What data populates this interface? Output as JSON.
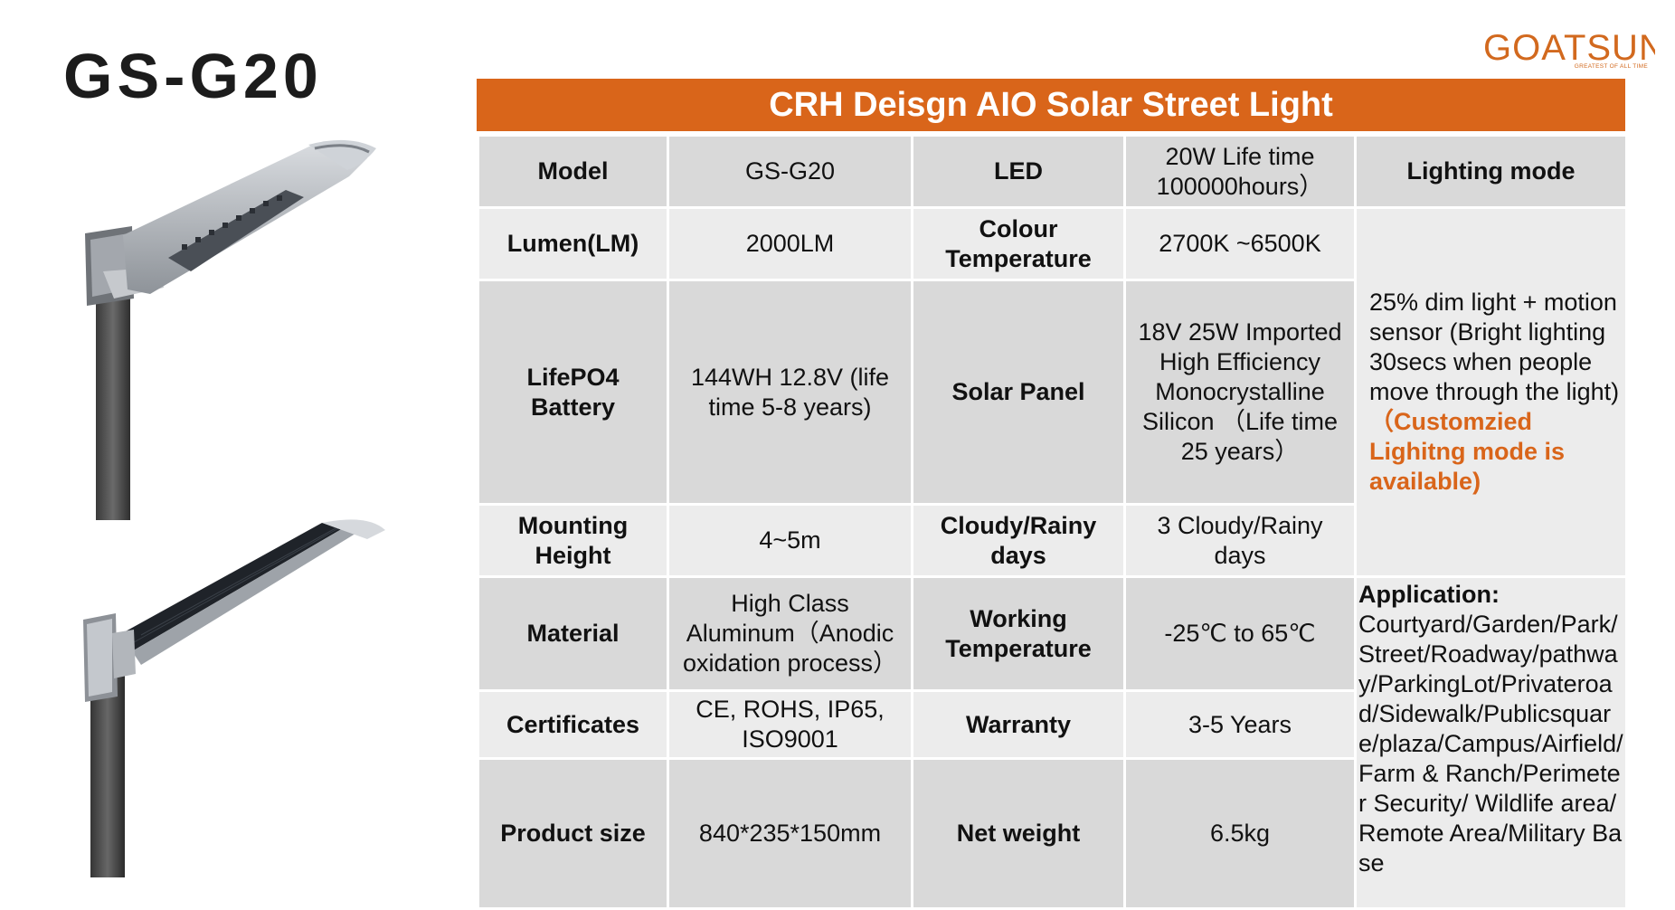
{
  "product": {
    "model_title": "GS-G20"
  },
  "logo": {
    "brand": "GOATSUN",
    "tagline": "GREATEST OF ALL TIME"
  },
  "banner": {
    "title": "CRH Deisgn AIO Solar Street Light"
  },
  "specs": {
    "model": {
      "label": "Model",
      "value": "GS-G20"
    },
    "led": {
      "label": "LED",
      "value": "20W Life time 100000hours）"
    },
    "lumen": {
      "label": "Lumen(LM)",
      "value": "2000LM"
    },
    "colour_temp": {
      "label": "Colour Temperature",
      "value": "2700K ~6500K"
    },
    "battery": {
      "label": "LifePO4 Battery",
      "value": "144WH 12.8V (life time 5-8 years)"
    },
    "solar_panel": {
      "label": "Solar Panel",
      "value": "18V  25W Imported High Efficiency Monocrystalline Silicon （Life time 25 years）"
    },
    "mounting_height": {
      "label": "Mounting Height",
      "value": "4~5m"
    },
    "cloudy_days": {
      "label": "Cloudy/Rainy days",
      "value": "3 Cloudy/Rainy days"
    },
    "material": {
      "label": "Material",
      "value": "High Class Aluminum（Anodic oxidation process）"
    },
    "working_temp": {
      "label": "Working Temperature",
      "value": "-25℃ to 65℃"
    },
    "certificates": {
      "label": "Certificates",
      "value": "CE, ROHS, IP65, ISO9001"
    },
    "warranty": {
      "label": "Warranty",
      "value": "3-5 Years"
    },
    "product_size": {
      "label": "Product size",
      "value": "840*235*150mm"
    },
    "net_weight": {
      "label": "Net weight",
      "value": "6.5kg"
    }
  },
  "lighting_mode": {
    "label": "Lighting mode",
    "description": "25% dim light + motion sensor (Bright lighting 30secs when people move through the light)",
    "note": "（Customzied Lighitng mode is available)"
  },
  "application": {
    "label": "Application:",
    "text": "Courtyard/Garden/Park/Street/Roadway/pathway/ParkingLot/Privateroad/Sidewalk/Publicsquare/plaza/Campus/Airfield/Farm & Ranch/Perimeter Security/ Wildlife area/Remote Area/Military Base"
  },
  "colors": {
    "accent": "#d9651a",
    "cell_dark": "#d9d9d9",
    "cell_light": "#ececec"
  }
}
